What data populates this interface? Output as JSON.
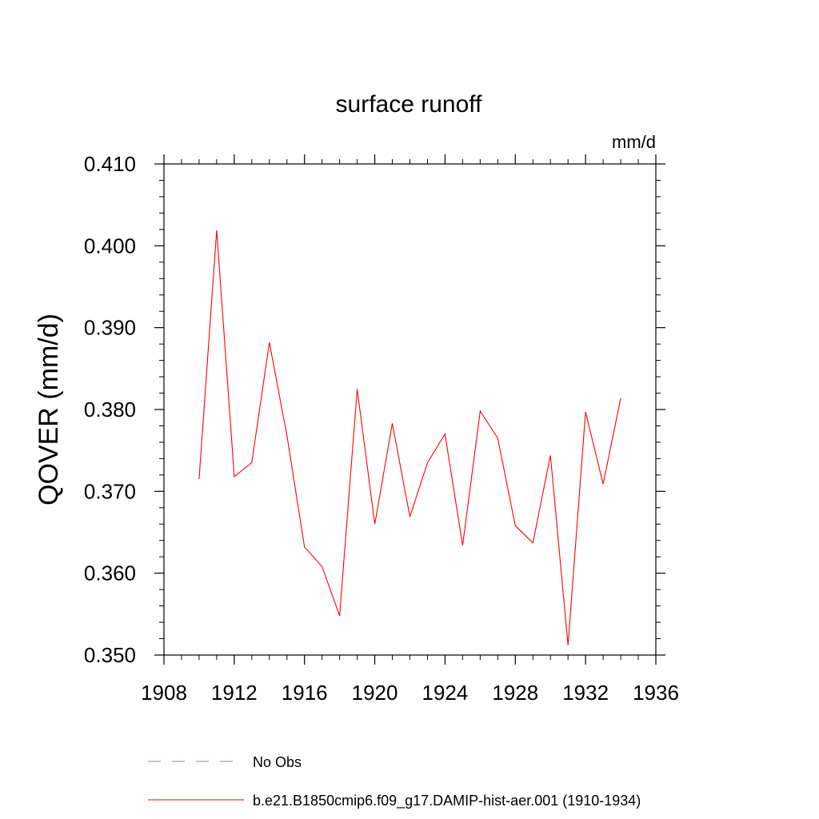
{
  "chart_data": {
    "type": "line",
    "title": "surface runoff",
    "units_label": "mm/d",
    "ylabel": "QOVER  (mm/d)",
    "xlabel": "",
    "xlim": [
      1908,
      1936
    ],
    "ylim": [
      0.35,
      0.41
    ],
    "x_ticks": [
      1908,
      1912,
      1916,
      1920,
      1924,
      1928,
      1932,
      1936
    ],
    "x_tick_labels": [
      "1908",
      "1912",
      "1916",
      "1920",
      "1924",
      "1928",
      "1932",
      "1936"
    ],
    "y_ticks": [
      0.35,
      0.36,
      0.37,
      0.38,
      0.39,
      0.4,
      0.41
    ],
    "y_tick_labels": [
      "0.350",
      "0.360",
      "0.370",
      "0.380",
      "0.390",
      "0.400",
      "0.410"
    ],
    "grid": false,
    "legend_position": "bottom",
    "series": [
      {
        "name": "b.e21.B1850cmip6.f09_g17.DAMIP-hist-aer.001 (1910-1934)",
        "color": "#ff0000",
        "style": "solid",
        "x": [
          1910,
          1911,
          1912,
          1913,
          1914,
          1915,
          1916,
          1917,
          1918,
          1919,
          1920,
          1921,
          1922,
          1923,
          1924,
          1925,
          1926,
          1927,
          1928,
          1929,
          1930,
          1931,
          1932,
          1933,
          1934
        ],
        "y": [
          0.3715,
          0.4019,
          0.3718,
          0.3735,
          0.3882,
          0.3768,
          0.3632,
          0.3608,
          0.3548,
          0.3825,
          0.366,
          0.3783,
          0.3669,
          0.3735,
          0.377,
          0.3634,
          0.3798,
          0.3765,
          0.3658,
          0.3637,
          0.3744,
          0.3512,
          0.3797,
          0.3709,
          0.3814
        ]
      }
    ],
    "legend": [
      {
        "label": "No Obs",
        "color": "#8080c0",
        "style": "dashed"
      },
      {
        "label": "b.e21.B1850cmip6.f09_g17.DAMIP-hist-aer.001 (1910-1934)",
        "color": "#ff0000",
        "style": "solid"
      }
    ]
  }
}
